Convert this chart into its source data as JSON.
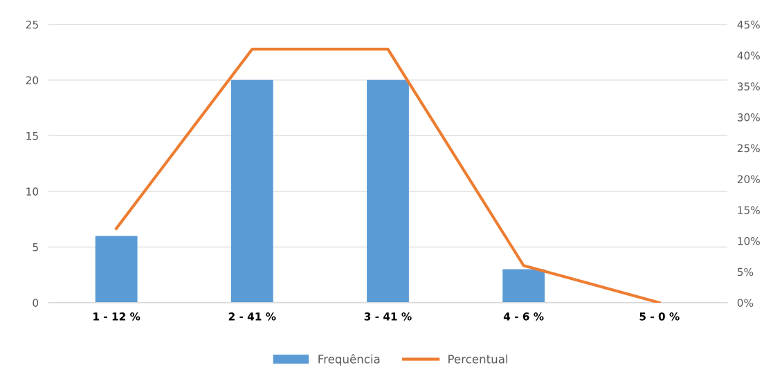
{
  "chart_data": {
    "type": "bar",
    "categories": [
      "1 - 12 %",
      "2 - 41 %",
      "3 - 41 %",
      "4 - 6 %",
      "5 - 0 %"
    ],
    "series": [
      {
        "name": "Frequência",
        "color": "#5b9bd5",
        "values": [
          6,
          20,
          20,
          3,
          0
        ]
      },
      {
        "name": "Percentual",
        "type": "line",
        "axis": "y2",
        "color": "#ed7d31",
        "values": [
          12,
          41,
          41,
          6,
          0
        ]
      }
    ],
    "ylim": [
      0,
      25
    ],
    "yticks": [
      0,
      5,
      10,
      15,
      20,
      25
    ],
    "y2lim": [
      0,
      45
    ],
    "y2ticks": [
      {
        "value": 0,
        "label": "0%"
      },
      {
        "value": 5,
        "label": "5%"
      },
      {
        "value": 10,
        "label": "10%"
      },
      {
        "value": 15,
        "label": "15%"
      },
      {
        "value": 20,
        "label": "20%"
      },
      {
        "value": 25,
        "label": "25%"
      },
      {
        "value": 30,
        "label": "30%"
      },
      {
        "value": 35,
        "label": "35%"
      },
      {
        "value": 40,
        "label": "40%"
      },
      {
        "value": 45,
        "label": "45%"
      }
    ],
    "grid": "y",
    "legend": "bottom",
    "marker": "none"
  }
}
